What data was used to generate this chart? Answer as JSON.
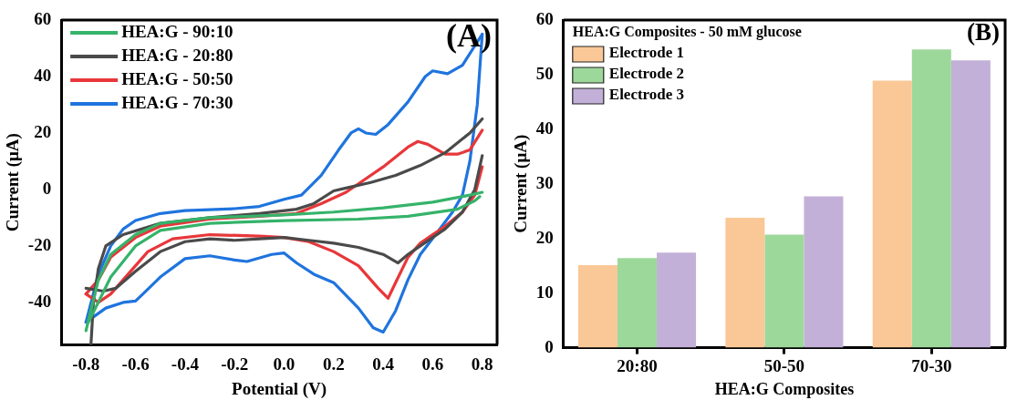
{
  "chart_data": [
    {
      "type": "line",
      "xlabel": "Potential (V)",
      "ylabel": "Current (μA)",
      "xlim": [
        -0.9,
        0.86
      ],
      "xticks": [
        -0.8,
        -0.6,
        -0.4,
        -0.2,
        {
          "value": 0,
          "label": "0.0"
        },
        0.2,
        0.4,
        0.6,
        0.8
      ],
      "ylim": [
        -55,
        60
      ],
      "yticks": [
        -40,
        -20,
        0,
        20,
        40,
        60
      ],
      "grid": false,
      "legend": "top left",
      "marker": "none",
      "line_style": "solid",
      "annotations": [
        "(A)"
      ],
      "series": [
        {
          "name": "HEA:G - 90:10",
          "color": "#35b36a",
          "x": [
            -0.8,
            -0.75,
            -0.7,
            -0.6,
            -0.5,
            -0.3,
            0,
            0.2,
            0.4,
            0.6,
            0.75,
            0.8
          ],
          "values": [
            -50,
            -32,
            -23,
            -16,
            -12,
            -10,
            -9,
            -8,
            -6.5,
            -4.5,
            -2,
            -1
          ]
        },
        {
          "color": "#35b36a",
          "x": [
            -0.79,
            -0.7,
            -0.6,
            -0.5,
            -0.3,
            0,
            0.3,
            0.5,
            0.7,
            0.77,
            0.79
          ],
          "values": [
            -47,
            -31,
            -20,
            -14.5,
            -12,
            -11,
            -10.5,
            -9.5,
            -7,
            -4,
            -2.5
          ]
        },
        {
          "name": "HEA:G - 20:80",
          "color": "#4a4a4a",
          "x": [
            -0.78,
            -0.77,
            -0.75,
            -0.72,
            -0.65,
            -0.5,
            -0.3,
            -0.1,
            0.05,
            0.12,
            0.2,
            0.25,
            0.35,
            0.45,
            0.55,
            0.65,
            0.75,
            0.8
          ],
          "values": [
            -55,
            -40,
            -28,
            -20,
            -16,
            -12,
            -10,
            -8.5,
            -7,
            -5,
            -0.5,
            0.5,
            2.5,
            5,
            8.5,
            13,
            20,
            25
          ]
        },
        {
          "color": "#4a4a4a",
          "x": [
            -0.8,
            -0.73,
            -0.68,
            -0.6,
            -0.5,
            -0.4,
            -0.3,
            -0.2,
            -0.1,
            0,
            0.1,
            0.2,
            0.3,
            0.4,
            0.46,
            0.5,
            0.55,
            0.65,
            0.72,
            0.77,
            0.8
          ],
          "values": [
            -35,
            -36,
            -35,
            -29,
            -22,
            -18.5,
            -17.5,
            -18,
            -17.5,
            -17,
            -18,
            -19,
            -20.5,
            -23,
            -26,
            -23,
            -20,
            -14,
            -8,
            0,
            12
          ]
        },
        {
          "name": "HEA:G - 50:50",
          "color": "#e8373a",
          "x": [
            -0.8,
            -0.75,
            -0.7,
            -0.6,
            -0.5,
            -0.3,
            -0.1,
            0.05,
            0.15,
            0.25,
            0.3,
            0.4,
            0.5,
            0.54,
            0.58,
            0.65,
            0.7,
            0.75,
            0.8
          ],
          "values": [
            -37,
            -32,
            -24,
            -17,
            -13,
            -10.5,
            -9.5,
            -8.5,
            -5,
            -1,
            2,
            8,
            15,
            17,
            16,
            12.5,
            12.5,
            14,
            21
          ]
        },
        {
          "color": "#e8373a",
          "x": [
            -0.8,
            -0.75,
            -0.7,
            -0.65,
            -0.55,
            -0.45,
            -0.3,
            -0.1,
            0,
            0.1,
            0.2,
            0.3,
            0.38,
            0.42,
            0.45,
            0.5,
            0.55,
            0.65,
            0.72,
            0.77,
            0.8
          ],
          "values": [
            -37,
            -40,
            -37,
            -32,
            -22,
            -17.5,
            -16,
            -16.5,
            -17,
            -18.5,
            -22,
            -27,
            -35,
            -38.5,
            -33,
            -24,
            -19,
            -13,
            -8,
            -2,
            8
          ]
        },
        {
          "name": "HEA:G - 70:30",
          "color": "#1f74de",
          "x": [
            -0.8,
            -0.75,
            -0.7,
            -0.65,
            -0.6,
            -0.5,
            -0.4,
            -0.2,
            -0.1,
            0,
            0.07,
            0.15,
            0.22,
            0.27,
            0.3,
            0.33,
            0.37,
            0.42,
            0.5,
            0.57,
            0.6,
            0.66,
            0.72,
            0.8
          ],
          "values": [
            -47,
            -30,
            -20,
            -14,
            -11,
            -8.5,
            -7.5,
            -6.8,
            -6,
            -3.5,
            -2,
            5,
            14,
            20,
            21.5,
            20,
            19.5,
            23,
            31,
            40,
            42,
            41,
            44,
            55
          ]
        },
        {
          "color": "#1f74de",
          "x": [
            -0.8,
            -0.72,
            -0.65,
            -0.6,
            -0.57,
            -0.5,
            -0.4,
            -0.3,
            -0.2,
            -0.15,
            -0.05,
            0,
            0.05,
            0.12,
            0.2,
            0.3,
            0.36,
            0.4,
            0.45,
            0.5,
            0.55,
            0.62,
            0.68,
            0.72,
            0.75,
            0.78,
            0.8
          ],
          "values": [
            -47,
            -42,
            -40,
            -39.5,
            -37,
            -31,
            -24.5,
            -23.5,
            -25,
            -25.5,
            -23,
            -22.5,
            -26,
            -30,
            -33,
            -42,
            -49,
            -50.5,
            -43,
            -32,
            -23,
            -15,
            -8,
            -2,
            10,
            30,
            55
          ]
        }
      ]
    },
    {
      "type": "bar",
      "xlabel": "HEA:G Composites",
      "ylabel": "Current (μA)",
      "categories": [
        "20:80",
        "50-50",
        "70-30"
      ],
      "ylim": [
        0,
        60
      ],
      "yticks": [
        0,
        10,
        20,
        30,
        40,
        50,
        60
      ],
      "grid": false,
      "legend": "top left",
      "legend_title": "HEA:G Composites - 50 mM glucose",
      "annotations": [
        "(B)"
      ],
      "series": [
        {
          "name": "Electrode 1",
          "color": "#f9c896",
          "values": [
            15.1,
            23.8,
            48.9
          ]
        },
        {
          "name": "Electrode 2",
          "color": "#9dd89b",
          "values": [
            16.4,
            20.7,
            54.6
          ]
        },
        {
          "name": "Electrode 3",
          "color": "#c3b0d8",
          "values": [
            17.4,
            27.7,
            52.6
          ]
        }
      ]
    }
  ]
}
